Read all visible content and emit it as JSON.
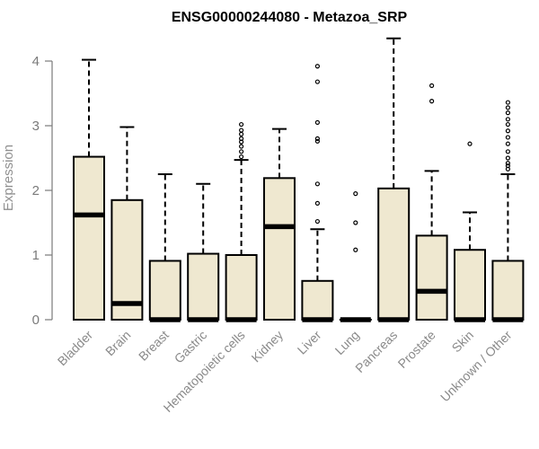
{
  "chart_data": {
    "type": "boxplot",
    "title": "ENSG00000244080 - Metazoa_SRP",
    "ylabel": "Expression",
    "ylim": [
      0,
      4.2
    ],
    "yticks": [
      0,
      1,
      2,
      3,
      4
    ],
    "box_fill": "#efe8d0",
    "categories": [
      "Bladder",
      "Brain",
      "Breast",
      "Gastric",
      "Hematopoietic cells",
      "Kidney",
      "Liver",
      "Lung",
      "Pancreas",
      "Prostate",
      "Skin",
      "Unknown / Other"
    ],
    "boxes": [
      {
        "min": 0,
        "q1": 0,
        "median": 1.62,
        "q3": 2.52,
        "max": 4.02,
        "outliers": []
      },
      {
        "min": 0,
        "q1": 0,
        "median": 0.25,
        "q3": 1.85,
        "max": 2.98,
        "outliers": []
      },
      {
        "min": 0,
        "q1": 0,
        "median": 0.0,
        "q3": 0.91,
        "max": 2.25,
        "outliers": []
      },
      {
        "min": 0,
        "q1": 0,
        "median": 0.0,
        "q3": 1.02,
        "max": 2.1,
        "outliers": []
      },
      {
        "min": 0,
        "q1": 0,
        "median": 0.0,
        "q3": 1.0,
        "max": 2.47,
        "outliers": [
          2.52,
          2.6,
          2.68,
          2.75,
          2.8,
          2.87,
          2.93,
          3.02
        ]
      },
      {
        "min": 0,
        "q1": 0,
        "median": 1.44,
        "q3": 2.19,
        "max": 2.95,
        "outliers": []
      },
      {
        "min": 0,
        "q1": 0,
        "median": 0.0,
        "q3": 0.6,
        "max": 1.4,
        "outliers": [
          1.52,
          1.8,
          2.1,
          2.76,
          2.8,
          3.05,
          3.68,
          3.92
        ]
      },
      {
        "min": 0,
        "q1": 0,
        "median": 0.0,
        "q3": 0.0,
        "max": 0.0,
        "outliers": [
          1.08,
          1.5,
          1.95
        ]
      },
      {
        "min": 0,
        "q1": 0,
        "median": 0.0,
        "q3": 2.03,
        "max": 4.35,
        "outliers": []
      },
      {
        "min": 0,
        "q1": 0,
        "median": 0.44,
        "q3": 1.3,
        "max": 2.3,
        "outliers": [
          3.38,
          3.62
        ]
      },
      {
        "min": 0,
        "q1": 0,
        "median": 0.0,
        "q3": 1.08,
        "max": 1.66,
        "outliers": [
          2.72
        ]
      },
      {
        "min": 0,
        "q1": 0,
        "median": 0.0,
        "q3": 0.91,
        "max": 2.25,
        "outliers": [
          2.33,
          2.38,
          2.42,
          2.5,
          2.6,
          2.72,
          2.82,
          2.92,
          3.02,
          3.1,
          3.2,
          3.28,
          3.36
        ]
      }
    ]
  }
}
